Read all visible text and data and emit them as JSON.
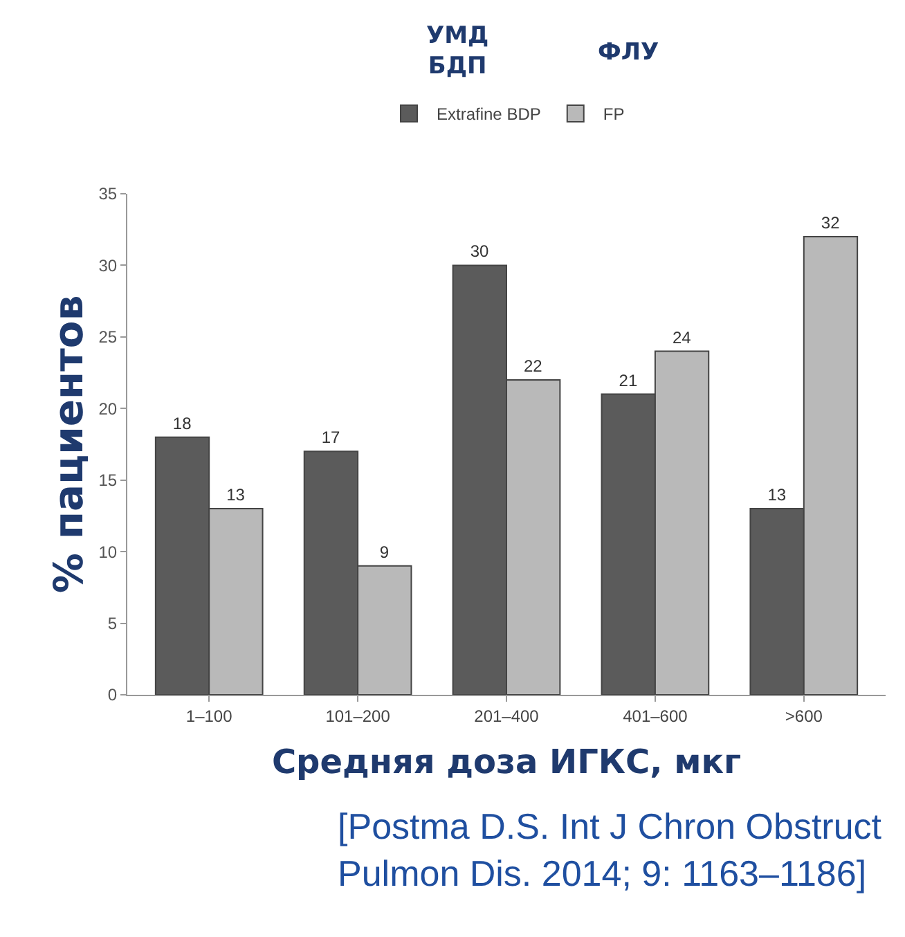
{
  "chart_data": {
    "type": "bar",
    "categories": [
      "1–100",
      "101–200",
      "201–400",
      "401–600",
      ">600"
    ],
    "series": [
      {
        "name": "Extrafine BDP",
        "color": "#5b5b5b",
        "values": [
          18,
          17,
          30,
          21,
          13
        ]
      },
      {
        "name": "FP",
        "color": "#b9b9b9",
        "values": [
          13,
          9,
          22,
          24,
          32
        ]
      }
    ],
    "ylim": [
      0,
      35
    ],
    "yticks": [
      0,
      5,
      10,
      15,
      20,
      25,
      30,
      35
    ],
    "ylabel": "% пациентов",
    "xlabel": "Средняя доза ИГКС, мкг",
    "annotations": [
      "УМД\nБДП",
      "ФЛУ",
      "[Postma D.S. Int J Chron Obstruct\nPulmon Dis. 2014; 9: 1163–1186]"
    ],
    "data_labels": true,
    "grid": false,
    "legend": "top"
  }
}
